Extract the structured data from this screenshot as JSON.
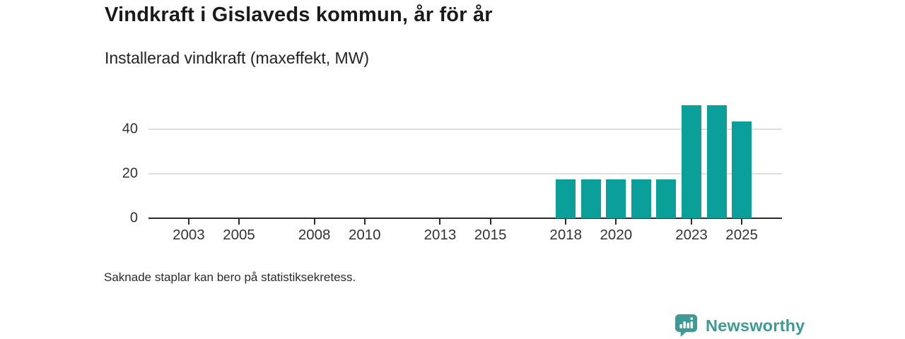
{
  "header": {
    "title": "Vindkraft i Gislaveds kommun, år för år",
    "subtitle": "Installerad vindkraft (maxeffekt, MW)"
  },
  "chart_data": {
    "type": "bar",
    "title": "Vindkraft i Gislaveds kommun, år för år",
    "subtitle": "Installerad vindkraft (maxeffekt, MW)",
    "unit": "MW",
    "categories": [
      2018,
      2019,
      2020,
      2021,
      2022,
      2023,
      2024,
      2025
    ],
    "values": [
      17.5,
      17.5,
      17.5,
      17.5,
      17.5,
      50.5,
      50.5,
      43.5
    ],
    "x_ticks": [
      2003,
      2005,
      2008,
      2010,
      2013,
      2015,
      2018,
      2020,
      2023,
      2025
    ],
    "y_ticks": [
      0,
      20,
      40
    ],
    "x_domain": [
      2001.4,
      2026.6
    ],
    "ylim": [
      0,
      53.5
    ],
    "grid": "horizontal",
    "legend": "none",
    "bar_color": "#0aa099"
  },
  "footnote": {
    "text": "Saknade staplar kan bero på statistiksekretess."
  },
  "branding": {
    "logo_text": "Newsworthy",
    "logo_icon": "bar-chart-speech-bubble-icon",
    "logo_color": "#3e9a94"
  },
  "colors": {
    "bar": "#0aa099",
    "axis": "#2b2b2b",
    "grid": "#dedede",
    "title": "#1a1a1a",
    "text": "#333333"
  }
}
